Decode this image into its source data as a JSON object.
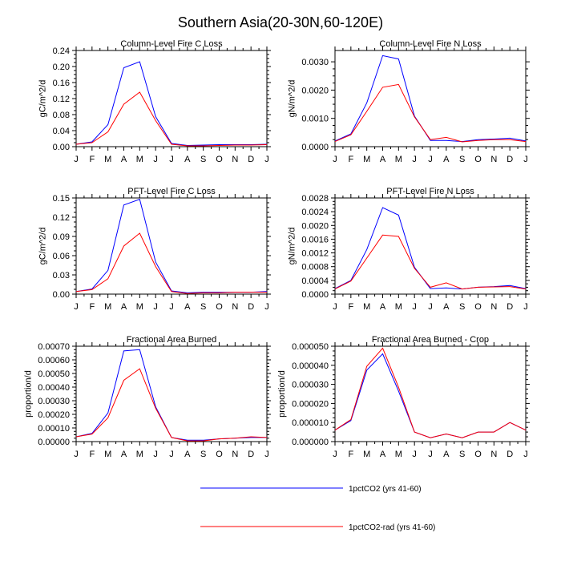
{
  "figure": {
    "title": "Southern Asia(20-30N,60-120E)"
  },
  "legend": {
    "placement": "bottom-center",
    "entries": [
      {
        "label": "1pctCO2 (yrs 41-60)",
        "color": "#0000ff"
      },
      {
        "label": "1pctCO2-rad (yrs 41-60)",
        "color": "#ff0000"
      }
    ]
  },
  "chart_data": [
    {
      "type": "line",
      "title": "Column-Level Fire C Loss",
      "xlabel": "",
      "ylabel": "gC/m^2/d",
      "categories": [
        "J",
        "F",
        "M",
        "A",
        "M",
        "J",
        "J",
        "A",
        "S",
        "O",
        "N",
        "D",
        "J"
      ],
      "ylim": [
        0,
        0.24
      ],
      "yticks": [
        0.0,
        0.04,
        0.08,
        0.12,
        0.16,
        0.2,
        0.24
      ],
      "ytick_labels": [
        "0.00",
        "0.04",
        "0.08",
        "0.12",
        "0.16",
        "0.20",
        "0.24"
      ],
      "grid": false,
      "series": [
        {
          "name": "1pctCO2 (yrs 41-60)",
          "color": "#0000ff",
          "values": [
            0.006,
            0.012,
            0.055,
            0.197,
            0.212,
            0.075,
            0.008,
            0.003,
            0.004,
            0.005,
            0.005,
            0.005,
            0.006
          ]
        },
        {
          "name": "1pctCO2-rad (yrs 41-60)",
          "color": "#ff0000",
          "values": [
            0.006,
            0.01,
            0.037,
            0.106,
            0.136,
            0.065,
            0.006,
            0.002,
            0.002,
            0.003,
            0.004,
            0.004,
            0.005
          ]
        }
      ]
    },
    {
      "type": "line",
      "title": "Column-Level Fire N Loss",
      "xlabel": "",
      "ylabel": "gN/m^2/d",
      "categories": [
        "J",
        "F",
        "M",
        "A",
        "M",
        "J",
        "J",
        "A",
        "S",
        "O",
        "N",
        "D",
        "J"
      ],
      "ylim": [
        0,
        0.0034
      ],
      "yticks": [
        0.0,
        0.001,
        0.002,
        0.003
      ],
      "ytick_labels": [
        "0.0000",
        "0.0010",
        "0.0020",
        "0.0030"
      ],
      "grid": false,
      "series": [
        {
          "name": "1pctCO2 (yrs 41-60)",
          "color": "#0000ff",
          "values": [
            0.0002,
            0.00045,
            0.00155,
            0.00322,
            0.0031,
            0.00108,
            0.00022,
            0.00022,
            0.00018,
            0.00025,
            0.00027,
            0.0003,
            0.0002
          ]
        },
        {
          "name": "1pctCO2-rad (yrs 41-60)",
          "color": "#ff0000",
          "values": [
            0.00018,
            0.00042,
            0.00125,
            0.0021,
            0.0022,
            0.00105,
            0.00025,
            0.00033,
            0.00017,
            0.00022,
            0.00025,
            0.00025,
            0.00018
          ]
        }
      ]
    },
    {
      "type": "line",
      "title": "PFT-Level Fire C Loss",
      "xlabel": "",
      "ylabel": "gC/m^2/d",
      "categories": [
        "J",
        "F",
        "M",
        "A",
        "M",
        "J",
        "J",
        "A",
        "S",
        "O",
        "N",
        "D",
        "J"
      ],
      "ylim": [
        0,
        0.15
      ],
      "yticks": [
        0.0,
        0.03,
        0.06,
        0.09,
        0.12,
        0.15
      ],
      "ytick_labels": [
        "0.00",
        "0.03",
        "0.06",
        "0.09",
        "0.12",
        "0.15"
      ],
      "grid": false,
      "series": [
        {
          "name": "1pctCO2 (yrs 41-60)",
          "color": "#0000ff",
          "values": [
            0.004,
            0.008,
            0.037,
            0.139,
            0.148,
            0.05,
            0.005,
            0.002,
            0.003,
            0.003,
            0.003,
            0.003,
            0.004
          ]
        },
        {
          "name": "1pctCO2-rad (yrs 41-60)",
          "color": "#ff0000",
          "values": [
            0.004,
            0.007,
            0.024,
            0.075,
            0.095,
            0.043,
            0.004,
            0.001,
            0.002,
            0.002,
            0.003,
            0.003,
            0.003
          ]
        }
      ]
    },
    {
      "type": "line",
      "title": "PFT-Level Fire N Loss",
      "xlabel": "",
      "ylabel": "gN/m^2/d",
      "categories": [
        "J",
        "F",
        "M",
        "A",
        "M",
        "J",
        "J",
        "A",
        "S",
        "O",
        "N",
        "D",
        "J"
      ],
      "ylim": [
        0,
        0.0028
      ],
      "yticks": [
        0.0,
        0.0004,
        0.0008,
        0.0012,
        0.0016,
        0.002,
        0.0024,
        0.0028
      ],
      "ytick_labels": [
        "0.0000",
        "0.0004",
        "0.0008",
        "0.0012",
        "0.0016",
        "0.0020",
        "0.0024",
        "0.0028"
      ],
      "grid": false,
      "series": [
        {
          "name": "1pctCO2 (yrs 41-60)",
          "color": "#0000ff",
          "values": [
            0.00016,
            0.0004,
            0.0013,
            0.00252,
            0.0023,
            0.00078,
            0.00016,
            0.00018,
            0.00015,
            0.0002,
            0.00022,
            0.00025,
            0.00016
          ]
        },
        {
          "name": "1pctCO2-rad (yrs 41-60)",
          "color": "#ff0000",
          "values": [
            0.00015,
            0.00038,
            0.00105,
            0.00172,
            0.00168,
            0.00075,
            0.0002,
            0.00033,
            0.00015,
            0.0002,
            0.00021,
            0.00022,
            0.00015
          ]
        }
      ]
    },
    {
      "type": "line",
      "title": "Fractional Area Burned",
      "xlabel": "",
      "ylabel": "proportion/d",
      "categories": [
        "J",
        "F",
        "M",
        "A",
        "M",
        "J",
        "J",
        "A",
        "S",
        "O",
        "N",
        "D",
        "J"
      ],
      "ylim": [
        0,
        0.0007
      ],
      "yticks": [
        0.0,
        0.0001,
        0.0002,
        0.0003,
        0.0004,
        0.0005,
        0.0006,
        0.0007
      ],
      "ytick_labels": [
        "0.00000",
        "0.00010",
        "0.00020",
        "0.00030",
        "0.00040",
        "0.00050",
        "0.00060",
        "0.00070"
      ],
      "grid": false,
      "series": [
        {
          "name": "1pctCO2 (yrs 41-60)",
          "color": "#0000ff",
          "values": [
            3.5e-05,
            6e-05,
            0.00021,
            0.000665,
            0.000675,
            0.000255,
            3e-05,
            1e-05,
            1e-05,
            2e-05,
            2.5e-05,
            3e-05,
            3e-05
          ]
        },
        {
          "name": "1pctCO2-rad (yrs 41-60)",
          "color": "#ff0000",
          "values": [
            3.5e-05,
            5.5e-05,
            0.000175,
            0.00045,
            0.000535,
            0.000245,
            3e-05,
            5e-06,
            5e-06,
            2e-05,
            2.5e-05,
            3.5e-05,
            3e-05
          ]
        }
      ]
    },
    {
      "type": "line",
      "title": "Fractional Area Burned - Crop",
      "xlabel": "",
      "ylabel": "proportion/d",
      "categories": [
        "J",
        "F",
        "M",
        "A",
        "M",
        "J",
        "J",
        "A",
        "S",
        "O",
        "N",
        "D",
        "J"
      ],
      "ylim": [
        0,
        5e-05
      ],
      "yticks": [
        0.0,
        1e-05,
        2e-05,
        3e-05,
        4e-05,
        5e-05
      ],
      "ytick_labels": [
        "0.000000",
        "0.000010",
        "0.000020",
        "0.000030",
        "0.000040",
        "0.000050"
      ],
      "grid": false,
      "series": [
        {
          "name": "1pctCO2 (yrs 41-60)",
          "color": "#0000ff",
          "values": [
            6e-06,
            1.1e-05,
            3.75e-05,
            4.6e-05,
            2.65e-05,
            5e-06,
            2e-06,
            4e-06,
            2e-06,
            5e-06,
            5e-06,
            1e-05,
            6e-06
          ]
        },
        {
          "name": "1pctCO2-rad (yrs 41-60)",
          "color": "#ff0000",
          "values": [
            6e-06,
            1.15e-05,
            3.95e-05,
            4.9e-05,
            2.85e-05,
            5e-06,
            2e-06,
            4e-06,
            2e-06,
            5e-06,
            5e-06,
            1e-05,
            6e-06
          ]
        }
      ]
    }
  ]
}
